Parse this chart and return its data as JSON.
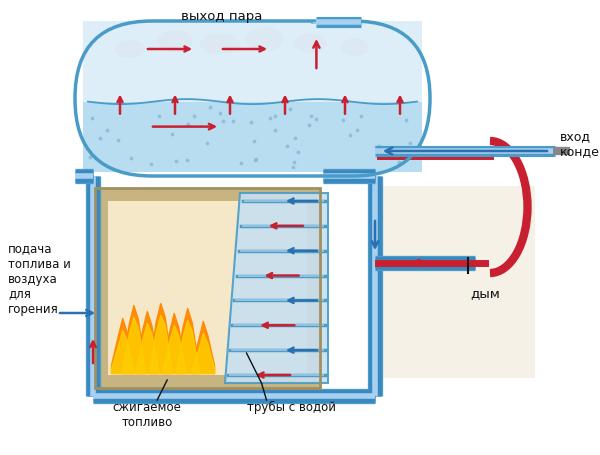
{
  "bg": "#ffffff",
  "c_drum_border": "#4a9cc8",
  "c_drum_steam": "#ddeef8",
  "c_drum_water": "#b8ddf0",
  "c_fur_wall": "#c8b480",
  "c_fur_inner": "#f5e8c8",
  "c_fire1": "#ff8800",
  "c_fire2": "#ffcc00",
  "c_tube_bg": "#c8e0f0",
  "c_pipe": "#3a88c0",
  "c_pipe_hl": "#a8d0f0",
  "c_red": "#c82030",
  "c_blue": "#2870b0",
  "c_black": "#111111",
  "c_ext_bg": "#f0e8d8",
  "lbl_steam": "выход пара",
  "lbl_cond": "вход\nконденсата",
  "lbl_fuel": "подача\nтоплива и\nвоздуха\nдля\nгорения",
  "lbl_combust": "сжигаемое\nтопливо",
  "lbl_pipes": "трубы с водой",
  "lbl_smoke": "дым"
}
